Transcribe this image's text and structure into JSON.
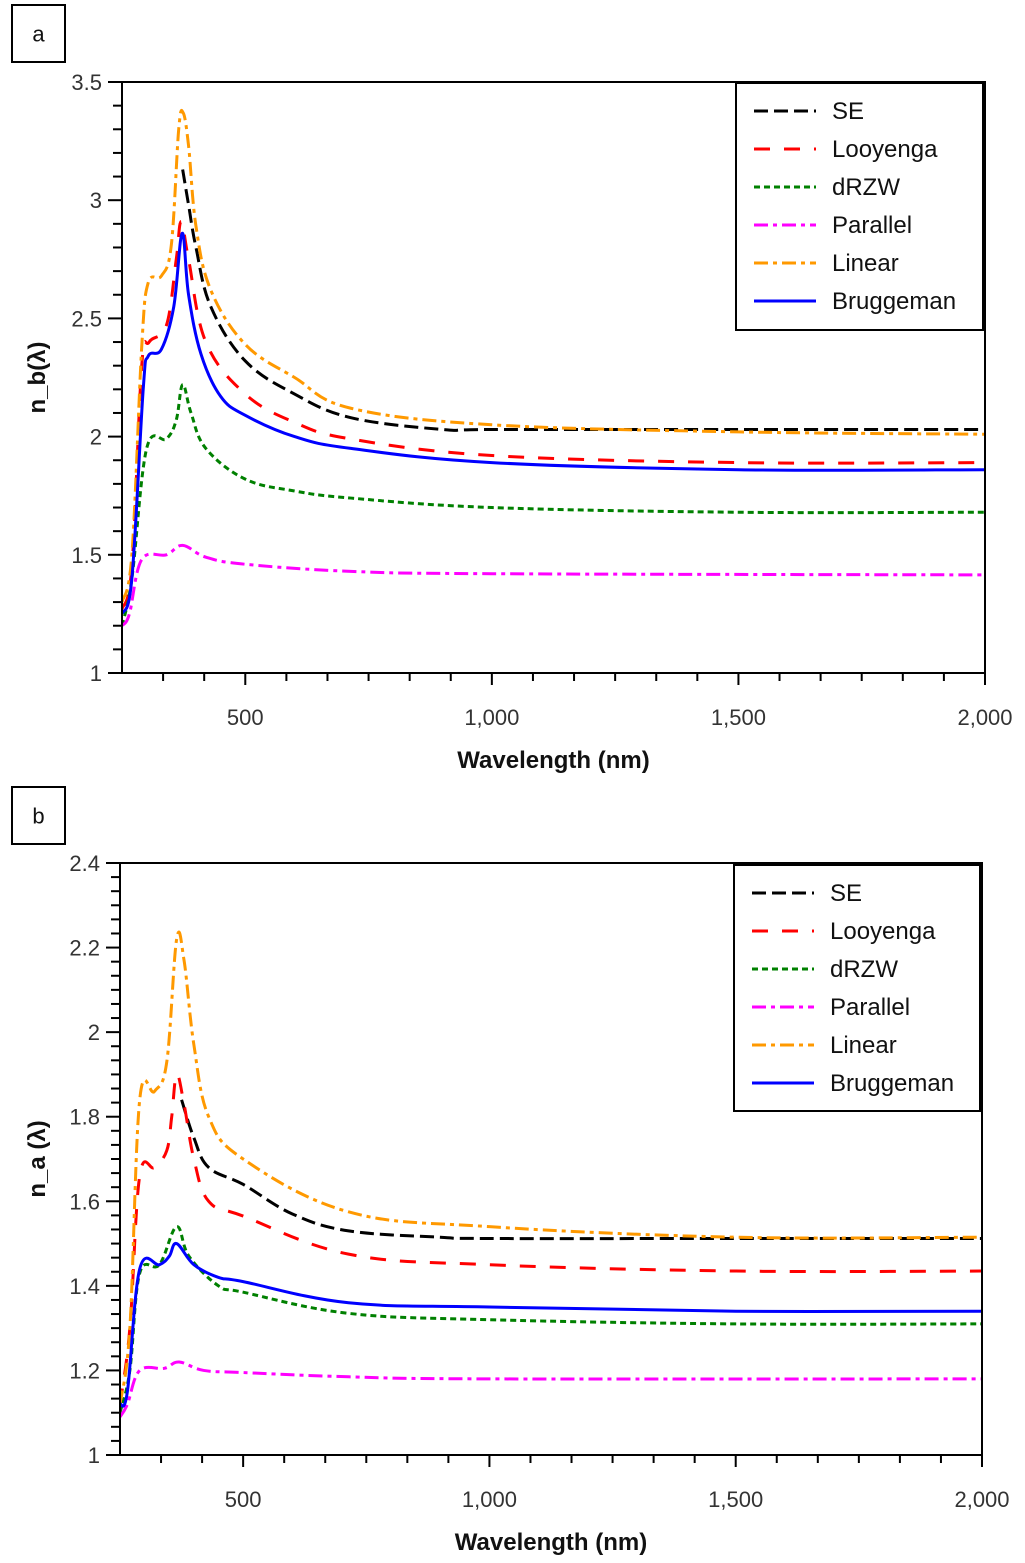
{
  "chart_data": [
    {
      "type": "line",
      "panel_label": "a",
      "xlabel": "Wavelength (nm)",
      "ylabel": "n_b(λ)",
      "ylabel_main": "n",
      "ylabel_sub": "b",
      "ylabel_rest": "(λ)",
      "xlim": [
        250,
        2000
      ],
      "ylim": [
        1,
        3.5
      ],
      "xticks": [
        500,
        1000,
        1500,
        2000
      ],
      "xtick_labels": [
        "500",
        "1,000",
        "1,500",
        "2,000"
      ],
      "yticks": [
        1,
        1.5,
        2,
        2.5,
        3,
        3.5
      ],
      "ytick_labels": [
        "1",
        "1.5",
        "2",
        "2.5",
        "3",
        "3.5"
      ],
      "grid": false,
      "legend_position": "top-right",
      "series": [
        {
          "name": "SE",
          "color": "#000000",
          "style": "dash",
          "points": [
            [
              373,
              3.13
            ],
            [
              385,
              2.98
            ],
            [
              400,
              2.8
            ],
            [
              430,
              2.55
            ],
            [
              500,
              2.32
            ],
            [
              600,
              2.18
            ],
            [
              714,
              2.08
            ],
            [
              900,
              2.03
            ],
            [
              1000,
              2.03
            ],
            [
              1500,
              2.03
            ],
            [
              2000,
              2.03
            ]
          ]
        },
        {
          "name": "Looyenga",
          "color": "#ff0000",
          "style": "longdash",
          "points": [
            [
              250,
              1.27
            ],
            [
              270,
              1.45
            ],
            [
              290,
              2.3
            ],
            [
              305,
              2.4
            ],
            [
              340,
              2.47
            ],
            [
              360,
              2.75
            ],
            [
              370,
              2.91
            ],
            [
              385,
              2.75
            ],
            [
              420,
              2.4
            ],
            [
              500,
              2.18
            ],
            [
              600,
              2.06
            ],
            [
              714,
              1.99
            ],
            [
              1000,
              1.92
            ],
            [
              1500,
              1.89
            ],
            [
              2000,
              1.89
            ]
          ]
        },
        {
          "name": "dRZW",
          "color": "#008000",
          "style": "dot",
          "points": [
            [
              250,
              1.2
            ],
            [
              270,
              1.4
            ],
            [
              300,
              1.95
            ],
            [
              340,
              1.99
            ],
            [
              360,
              2.07
            ],
            [
              373,
              2.22
            ],
            [
              390,
              2.1
            ],
            [
              420,
              1.95
            ],
            [
              500,
              1.82
            ],
            [
              600,
              1.77
            ],
            [
              714,
              1.74
            ],
            [
              1000,
              1.7
            ],
            [
              1500,
              1.68
            ],
            [
              2000,
              1.68
            ]
          ]
        },
        {
          "name": "Parallel",
          "color": "#ff00ff",
          "style": "dashdot",
          "points": [
            [
              250,
              1.2
            ],
            [
              265,
              1.25
            ],
            [
              290,
              1.48
            ],
            [
              340,
              1.5
            ],
            [
              373,
              1.54
            ],
            [
              420,
              1.49
            ],
            [
              500,
              1.46
            ],
            [
              714,
              1.43
            ],
            [
              1000,
              1.42
            ],
            [
              2000,
              1.415
            ]
          ]
        },
        {
          "name": "Linear",
          "color": "#ff9900",
          "style": "dashdot",
          "points": [
            [
              250,
              1.3
            ],
            [
              270,
              1.5
            ],
            [
              290,
              2.38
            ],
            [
              303,
              2.65
            ],
            [
              330,
              2.68
            ],
            [
              350,
              2.81
            ],
            [
              365,
              3.3
            ],
            [
              374,
              3.37
            ],
            [
              385,
              3.23
            ],
            [
              400,
              2.89
            ],
            [
              430,
              2.62
            ],
            [
              500,
              2.39
            ],
            [
              600,
              2.25
            ],
            [
              714,
              2.12
            ],
            [
              1000,
              2.05
            ],
            [
              1500,
              2.02
            ],
            [
              2000,
              2.01
            ]
          ]
        },
        {
          "name": "Bruggeman",
          "color": "#0000ff",
          "style": "solid",
          "points": [
            [
              250,
              1.25
            ],
            [
              270,
              1.4
            ],
            [
              293,
              2.2
            ],
            [
              303,
              2.34
            ],
            [
              330,
              2.37
            ],
            [
              355,
              2.55
            ],
            [
              372,
              2.86
            ],
            [
              385,
              2.6
            ],
            [
              410,
              2.35
            ],
            [
              450,
              2.17
            ],
            [
              500,
              2.09
            ],
            [
              600,
              2.0
            ],
            [
              714,
              1.95
            ],
            [
              1000,
              1.89
            ],
            [
              1500,
              1.86
            ],
            [
              2000,
              1.86
            ]
          ]
        }
      ]
    },
    {
      "type": "line",
      "panel_label": "b",
      "xlabel": "Wavelength (nm)",
      "ylabel": "n_a (λ)",
      "ylabel_main": "n",
      "ylabel_sub": "a",
      "ylabel_rest": " (λ)",
      "xlim": [
        250,
        2000
      ],
      "ylim": [
        1,
        2.4
      ],
      "xticks": [
        500,
        1000,
        1500,
        2000
      ],
      "xtick_labels": [
        "500",
        "1,000",
        "1,500",
        "2,000"
      ],
      "yticks": [
        1,
        1.2,
        1.4,
        1.6,
        1.8,
        2,
        2.2,
        2.4
      ],
      "ytick_labels": [
        "1",
        "1.2",
        "1.4",
        "1.6",
        "1.8",
        "2",
        "2.2",
        "2.4"
      ],
      "grid": false,
      "legend_position": "top-right",
      "series": [
        {
          "name": "SE",
          "color": "#000000",
          "style": "dash",
          "points": [
            [
              375,
              1.84
            ],
            [
              400,
              1.75
            ],
            [
              430,
              1.68
            ],
            [
              500,
              1.64
            ],
            [
              600,
              1.57
            ],
            [
              714,
              1.53
            ],
            [
              900,
              1.515
            ],
            [
              1000,
              1.512
            ],
            [
              1500,
              1.512
            ],
            [
              2000,
              1.512
            ]
          ]
        },
        {
          "name": "Looyenga",
          "color": "#ff0000",
          "style": "longdash",
          "points": [
            [
              250,
              1.12
            ],
            [
              270,
              1.3
            ],
            [
              290,
              1.66
            ],
            [
              320,
              1.68
            ],
            [
              345,
              1.72
            ],
            [
              355,
              1.8
            ],
            [
              365,
              1.9
            ],
            [
              380,
              1.83
            ],
            [
              400,
              1.7
            ],
            [
              430,
              1.6
            ],
            [
              500,
              1.565
            ],
            [
              714,
              1.475
            ],
            [
              1000,
              1.45
            ],
            [
              1500,
              1.435
            ],
            [
              2000,
              1.435
            ]
          ]
        },
        {
          "name": "dRZW",
          "color": "#008000",
          "style": "dot",
          "points": [
            [
              250,
              1.1
            ],
            [
              270,
              1.2
            ],
            [
              290,
              1.43
            ],
            [
              330,
              1.45
            ],
            [
              365,
              1.54
            ],
            [
              390,
              1.47
            ],
            [
              450,
              1.4
            ],
            [
              500,
              1.385
            ],
            [
              714,
              1.335
            ],
            [
              1000,
              1.32
            ],
            [
              1500,
              1.31
            ],
            [
              2000,
              1.31
            ]
          ]
        },
        {
          "name": "Parallel",
          "color": "#ff00ff",
          "style": "dashdot",
          "points": [
            [
              250,
              1.09
            ],
            [
              265,
              1.12
            ],
            [
              290,
              1.2
            ],
            [
              340,
              1.205
            ],
            [
              370,
              1.22
            ],
            [
              420,
              1.2
            ],
            [
              500,
              1.195
            ],
            [
              714,
              1.185
            ],
            [
              1000,
              1.18
            ],
            [
              2000,
              1.18
            ]
          ]
        },
        {
          "name": "Linear",
          "color": "#ff9900",
          "style": "dashdot",
          "points": [
            [
              250,
              1.12
            ],
            [
              270,
              1.3
            ],
            [
              290,
              1.84
            ],
            [
              320,
              1.86
            ],
            [
              345,
              1.93
            ],
            [
              365,
              2.22
            ],
            [
              380,
              2.17
            ],
            [
              400,
              1.97
            ],
            [
              430,
              1.8
            ],
            [
              500,
              1.7
            ],
            [
              714,
              1.575
            ],
            [
              1000,
              1.54
            ],
            [
              1500,
              1.515
            ],
            [
              2000,
              1.515
            ]
          ]
        },
        {
          "name": "Bruggeman",
          "color": "#0000ff",
          "style": "solid",
          "points": [
            [
              250,
              1.12
            ],
            [
              265,
              1.15
            ],
            [
              290,
              1.44
            ],
            [
              330,
              1.45
            ],
            [
              350,
              1.47
            ],
            [
              365,
              1.5
            ],
            [
              400,
              1.45
            ],
            [
              450,
              1.42
            ],
            [
              500,
              1.41
            ],
            [
              714,
              1.36
            ],
            [
              1000,
              1.35
            ],
            [
              1500,
              1.34
            ],
            [
              2000,
              1.34
            ]
          ]
        }
      ]
    }
  ]
}
